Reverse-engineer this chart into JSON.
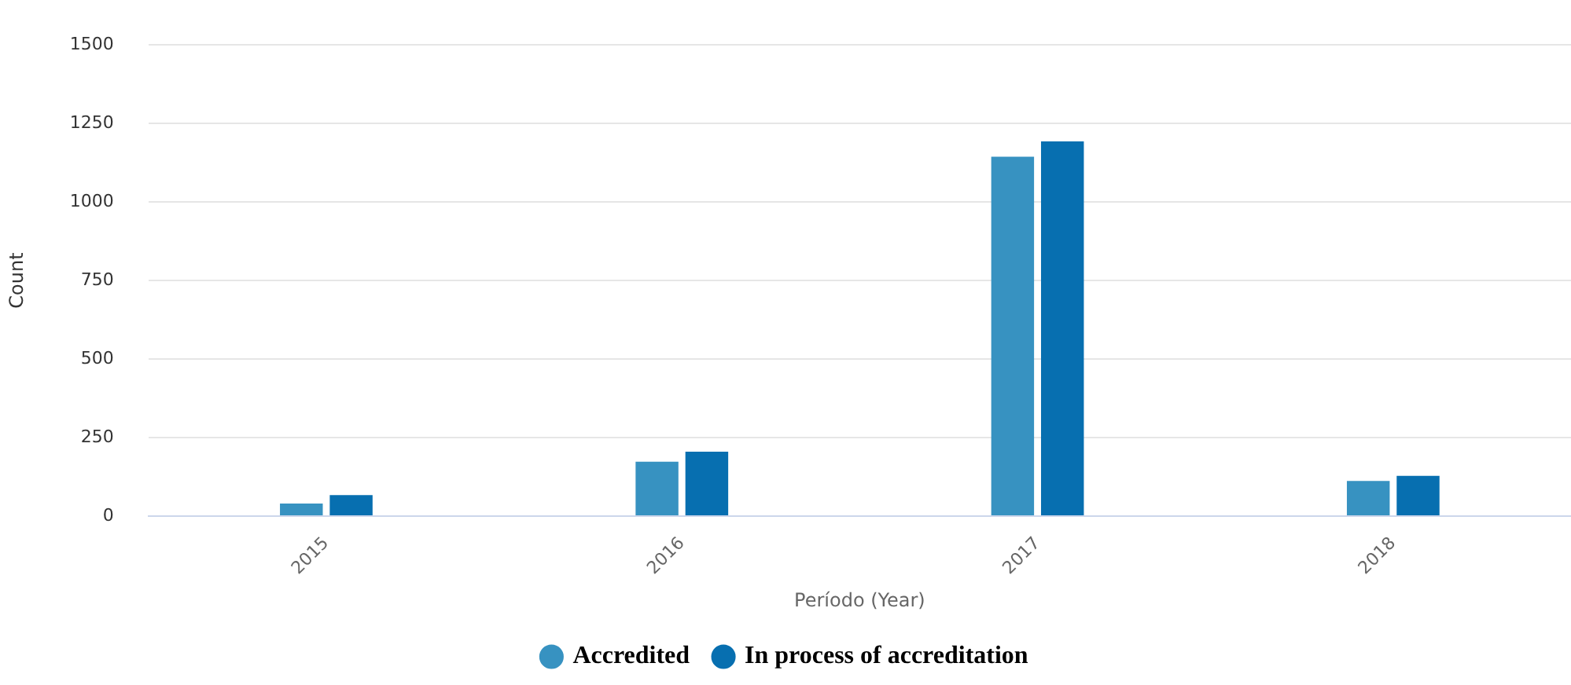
{
  "chart_data": {
    "type": "bar",
    "xlabel": "Período (Year)",
    "ylabel": "Count",
    "categories": [
      "2015",
      "2016",
      "2017",
      "2018"
    ],
    "series": [
      {
        "name": "Accredited",
        "color": "#3792c1",
        "values": [
          40,
          173,
          1144,
          112
        ]
      },
      {
        "name": "In process of accreditation",
        "color": "#076fb0",
        "values": [
          67,
          205,
          1193,
          128
        ]
      }
    ],
    "ylim": [
      0,
      1500
    ],
    "yticks": [
      0,
      250,
      500,
      750,
      1000,
      1250,
      1500
    ],
    "grid": "y",
    "legend": "bottom"
  }
}
